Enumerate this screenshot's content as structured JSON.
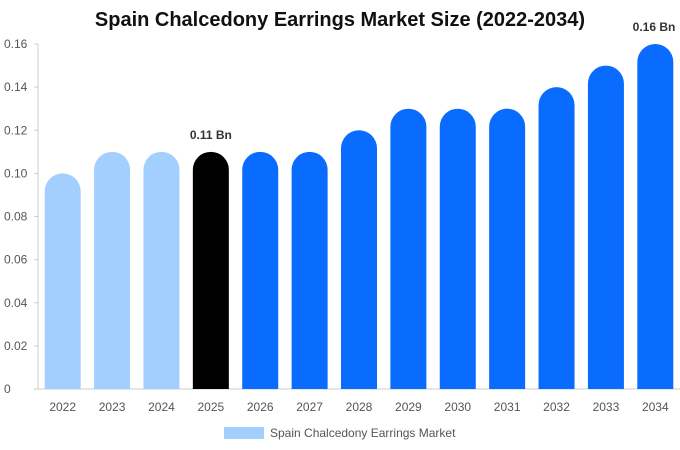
{
  "chart_data": {
    "type": "bar",
    "title": "Spain Chalcedony Earrings Market Size (2022-2034)",
    "xlabel": "",
    "ylabel": "",
    "categories": [
      "2022",
      "2023",
      "2024",
      "2025",
      "2026",
      "2027",
      "2028",
      "2029",
      "2030",
      "2031",
      "2032",
      "2033",
      "2034"
    ],
    "values": [
      0.1,
      0.11,
      0.11,
      0.11,
      0.11,
      0.11,
      0.12,
      0.13,
      0.13,
      0.13,
      0.14,
      0.15,
      0.16
    ],
    "ylim": [
      0,
      0.16
    ],
    "yticks": [
      "0",
      "0.02",
      "0.04",
      "0.06",
      "0.08",
      "0.10",
      "0.12",
      "0.14",
      "0.16"
    ],
    "ytick_values": [
      0,
      0.02,
      0.04,
      0.06,
      0.08,
      0.1,
      0.12,
      0.14,
      0.16
    ],
    "bar_colors": [
      "#a3cfff",
      "#a3cfff",
      "#a3cfff",
      "#000000",
      "#0a6cff",
      "#0a6cff",
      "#0a6cff",
      "#0a6cff",
      "#0a6cff",
      "#0a6cff",
      "#0a6cff",
      "#0a6cff",
      "#0a6cff"
    ],
    "annotations": [
      {
        "category": "2025",
        "text": "0.11 Bn"
      },
      {
        "category": "2034",
        "text": "0.16 Bn"
      }
    ],
    "legend": {
      "label": "Spain Chalcedony Earrings Market",
      "color": "#a3cfff",
      "placement": "bottom"
    },
    "grid": false
  }
}
